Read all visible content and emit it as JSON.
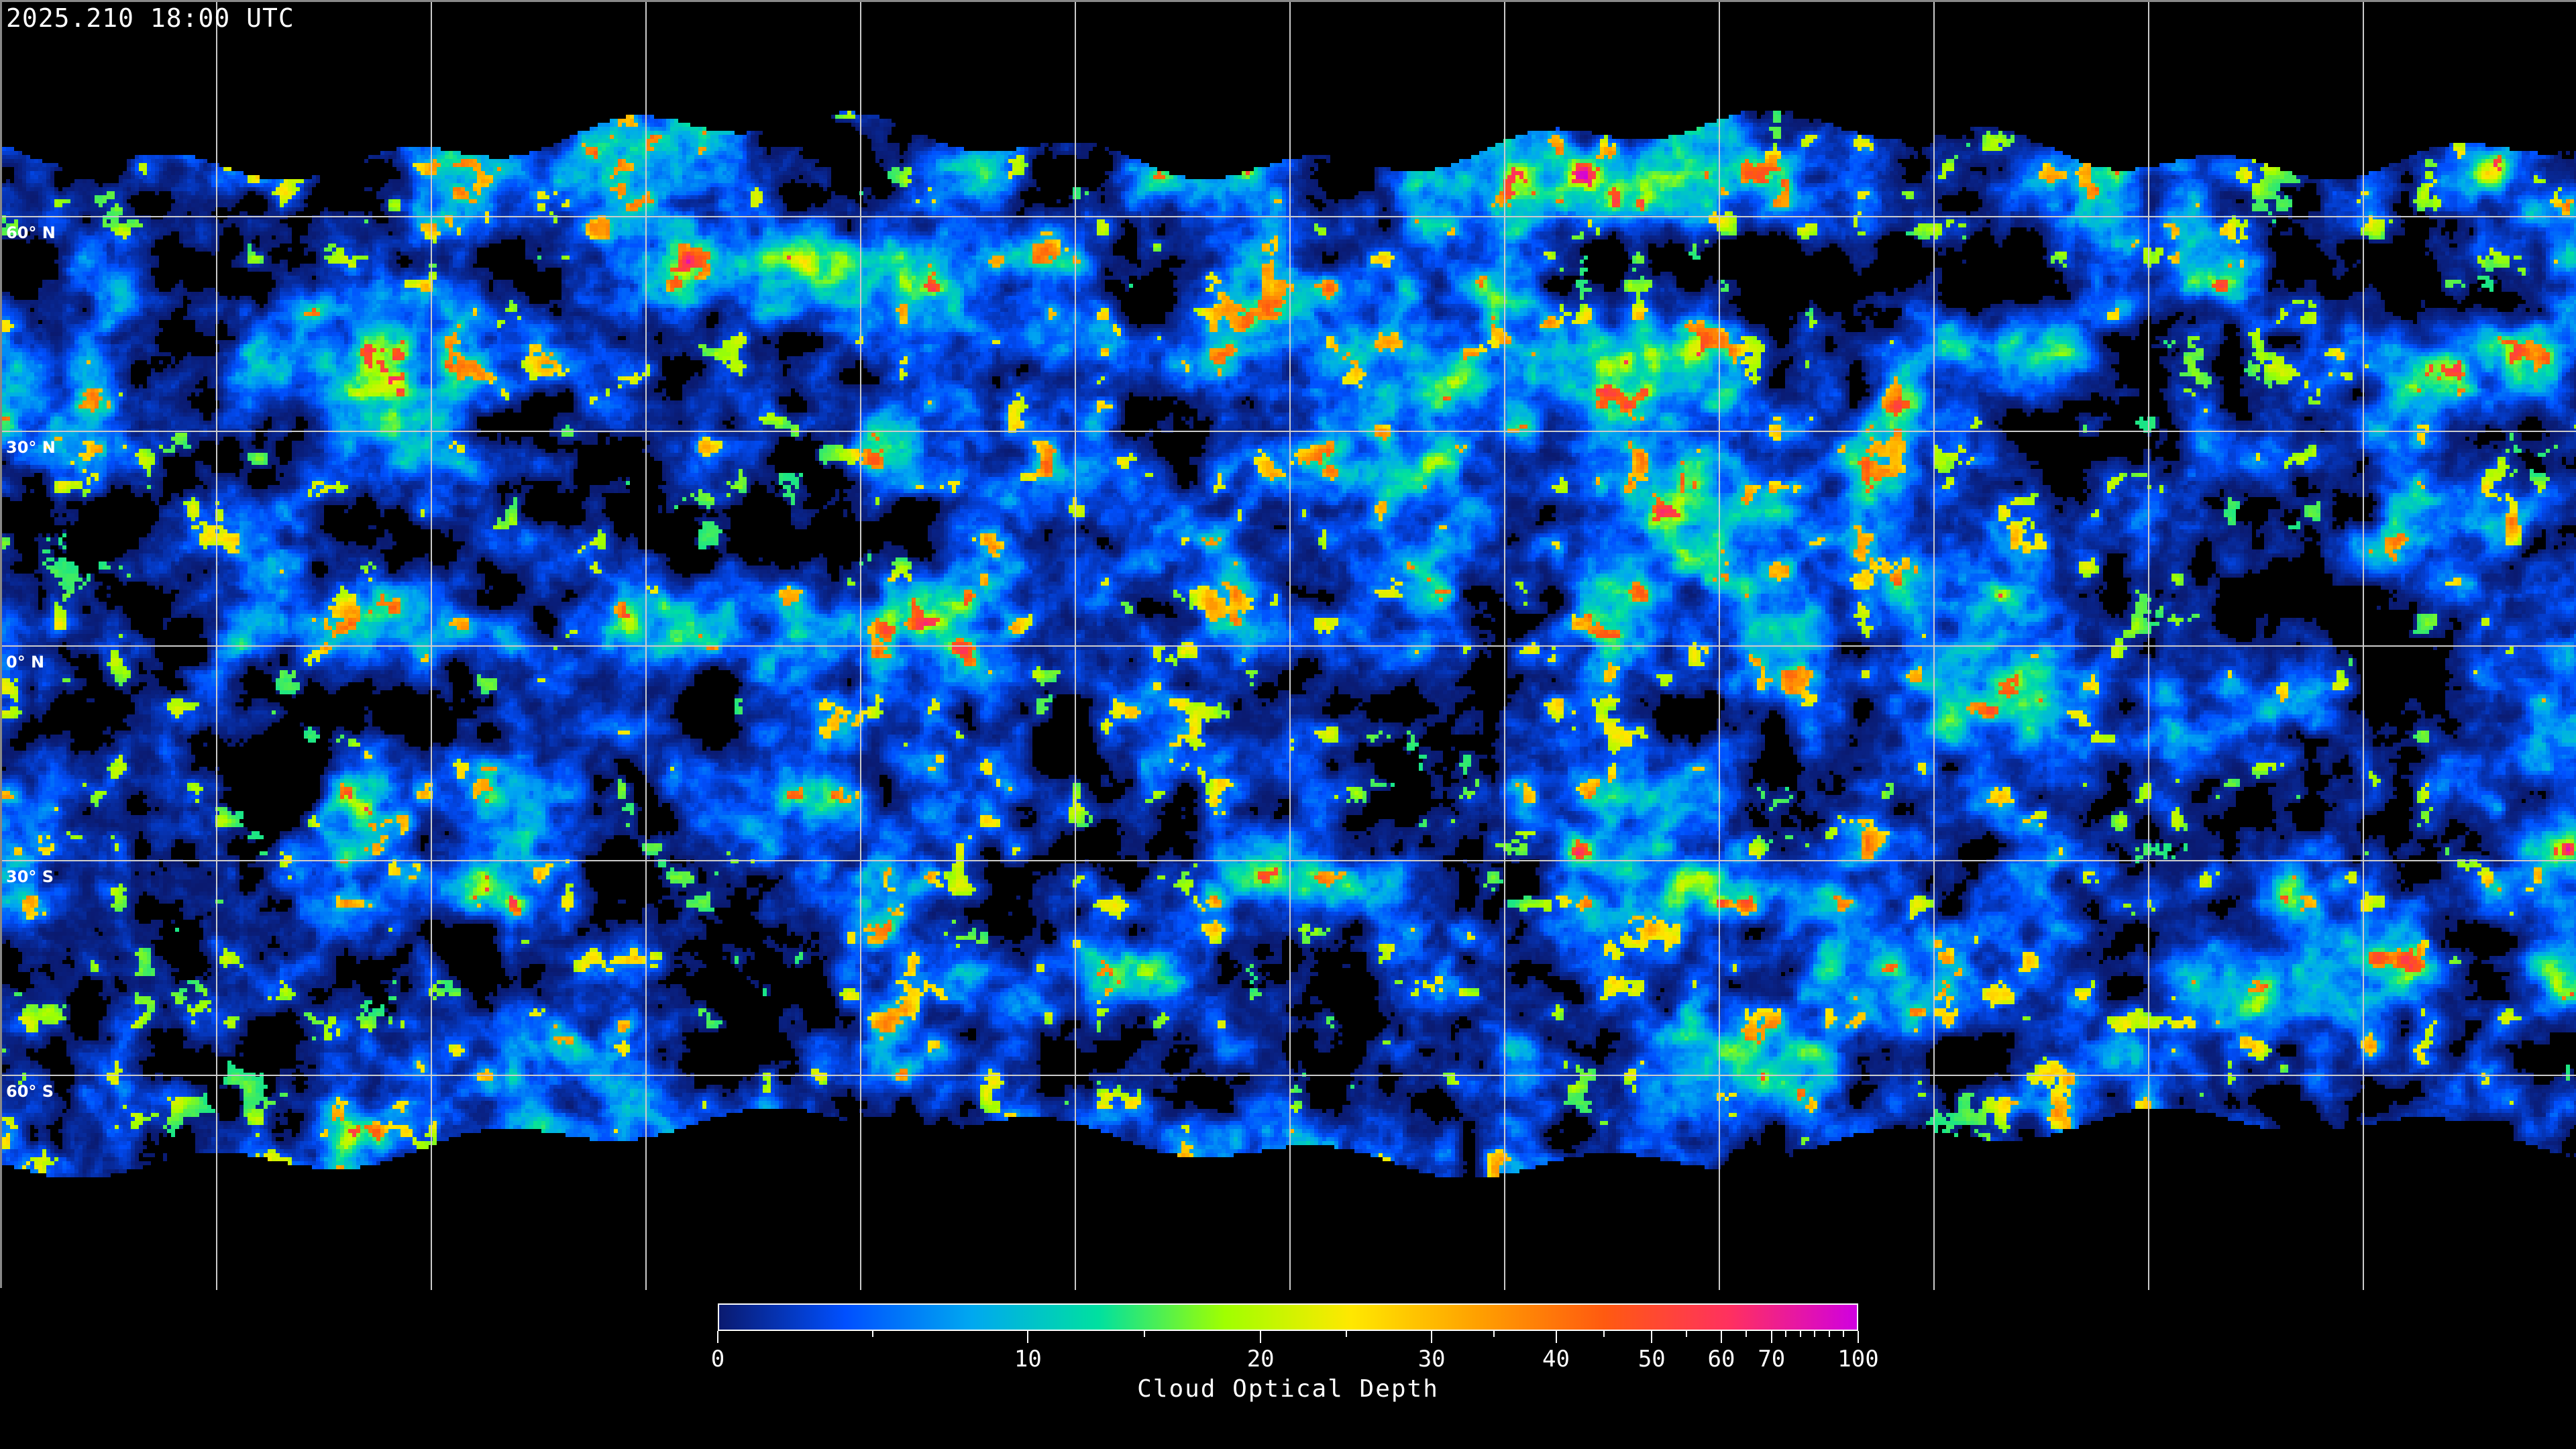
{
  "header": {
    "timestamp": "2025.210 18:00 UTC"
  },
  "map": {
    "projection": "equirectangular",
    "grid_spacing_deg": 30,
    "latitude_labels": [
      {
        "lat": 60,
        "text": "60° N"
      },
      {
        "lat": 30,
        "text": "30° N"
      },
      {
        "lat": 0,
        "text": "0° N"
      },
      {
        "lat": -30,
        "text": "30° S"
      },
      {
        "lat": -60,
        "text": "60° S"
      }
    ],
    "gridline_color": "#cccccc",
    "coastline_color": "#ffffff",
    "no_data_color": "#000000"
  },
  "colorbar": {
    "label": "Cloud Optical Depth",
    "range": [
      0,
      100
    ],
    "major_ticks": [
      "0",
      "10",
      "20",
      "30",
      "40",
      "50",
      "60",
      "70",
      "100"
    ],
    "minor_ticks": [
      5,
      15,
      25,
      35,
      45,
      55,
      65,
      75,
      80,
      85,
      90,
      95
    ],
    "colors": [
      "#0a1a70",
      "#0050ff",
      "#00a8f0",
      "#00e0a0",
      "#a0ff00",
      "#ffe800",
      "#ffa000",
      "#ff5a10",
      "#ff3060",
      "#d000e0"
    ]
  }
}
